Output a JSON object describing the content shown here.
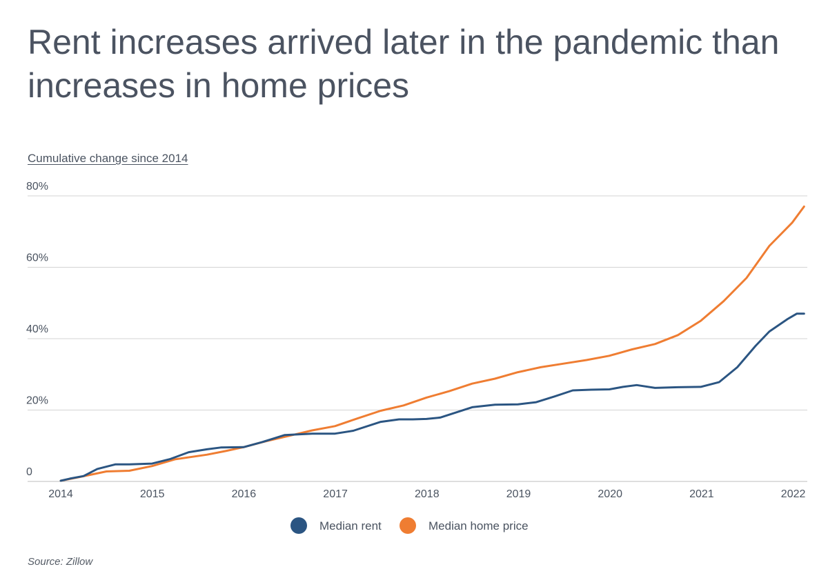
{
  "title": "Rent increases arrived later in the pandemic than increases in home prices",
  "subtitle": "Cumulative change since 2014",
  "source": "Source:  Zillow",
  "colors": {
    "rent": "#2b5582",
    "home_price": "#ef7d32",
    "grid": "#d3d3d3",
    "text": "#4a5360"
  },
  "chart_data": {
    "type": "line",
    "title": "Rent increases arrived later in the pandemic than increases in home prices",
    "ylabel": "Cumulative change since 2014",
    "xlabel": "",
    "ylim": [
      0,
      80
    ],
    "xlim": [
      2014,
      2022.15
    ],
    "yticks": [
      {
        "value": 0,
        "label": "0"
      },
      {
        "value": 20,
        "label": "20%"
      },
      {
        "value": 40,
        "label": "40%"
      },
      {
        "value": 60,
        "label": "60%"
      },
      {
        "value": 80,
        "label": "80%"
      }
    ],
    "xticks": [
      2014,
      2015,
      2016,
      2017,
      2018,
      2019,
      2020,
      2021,
      2022
    ],
    "xtick_labels": [
      "2014",
      "2015",
      "2016",
      "2017",
      "2018",
      "2019",
      "2020",
      "2021",
      "2022"
    ],
    "grid": true,
    "legend_position": "bottom-center",
    "series": [
      {
        "name": "Median rent",
        "color": "#2b5582",
        "points": [
          [
            2014.0,
            0.2
          ],
          [
            2014.1,
            0.8
          ],
          [
            2014.25,
            1.5
          ],
          [
            2014.4,
            3.5
          ],
          [
            2014.6,
            4.8
          ],
          [
            2014.75,
            4.8
          ],
          [
            2015.0,
            5.0
          ],
          [
            2015.2,
            6.3
          ],
          [
            2015.4,
            8.2
          ],
          [
            2015.6,
            9.0
          ],
          [
            2015.75,
            9.5
          ],
          [
            2016.0,
            9.6
          ],
          [
            2016.2,
            11.0
          ],
          [
            2016.45,
            13.0
          ],
          [
            2016.75,
            13.4
          ],
          [
            2017.0,
            13.4
          ],
          [
            2017.2,
            14.2
          ],
          [
            2017.5,
            16.7
          ],
          [
            2017.7,
            17.4
          ],
          [
            2017.85,
            17.4
          ],
          [
            2018.0,
            17.5
          ],
          [
            2018.15,
            17.9
          ],
          [
            2018.5,
            20.8
          ],
          [
            2018.75,
            21.5
          ],
          [
            2019.0,
            21.6
          ],
          [
            2019.2,
            22.2
          ],
          [
            2019.4,
            23.8
          ],
          [
            2019.6,
            25.5
          ],
          [
            2019.8,
            25.7
          ],
          [
            2020.0,
            25.8
          ],
          [
            2020.15,
            26.5
          ],
          [
            2020.3,
            27.0
          ],
          [
            2020.5,
            26.2
          ],
          [
            2020.75,
            26.4
          ],
          [
            2021.0,
            26.5
          ],
          [
            2021.2,
            27.8
          ],
          [
            2021.4,
            32.0
          ],
          [
            2021.6,
            38.0
          ],
          [
            2021.75,
            42.0
          ],
          [
            2021.95,
            45.5
          ],
          [
            2022.05,
            47.0
          ],
          [
            2022.13,
            47.0
          ]
        ]
      },
      {
        "name": "Median home price",
        "color": "#ef7d32",
        "points": [
          [
            2014.0,
            0.2
          ],
          [
            2014.2,
            1.2
          ],
          [
            2014.5,
            2.8
          ],
          [
            2014.75,
            3.0
          ],
          [
            2015.0,
            4.3
          ],
          [
            2015.25,
            6.2
          ],
          [
            2015.6,
            7.5
          ],
          [
            2015.8,
            8.5
          ],
          [
            2016.0,
            9.6
          ],
          [
            2016.25,
            11.3
          ],
          [
            2016.5,
            12.8
          ],
          [
            2016.75,
            14.3
          ],
          [
            2017.0,
            15.5
          ],
          [
            2017.25,
            17.7
          ],
          [
            2017.5,
            19.8
          ],
          [
            2017.75,
            21.3
          ],
          [
            2018.0,
            23.5
          ],
          [
            2018.25,
            25.3
          ],
          [
            2018.5,
            27.4
          ],
          [
            2018.75,
            28.8
          ],
          [
            2019.0,
            30.6
          ],
          [
            2019.25,
            32.0
          ],
          [
            2019.5,
            33.0
          ],
          [
            2019.75,
            34.0
          ],
          [
            2020.0,
            35.2
          ],
          [
            2020.25,
            37.0
          ],
          [
            2020.5,
            38.5
          ],
          [
            2020.75,
            41.0
          ],
          [
            2021.0,
            45.0
          ],
          [
            2021.25,
            50.5
          ],
          [
            2021.5,
            57.0
          ],
          [
            2021.75,
            66.0
          ],
          [
            2022.0,
            72.5
          ],
          [
            2022.13,
            77.0
          ]
        ]
      }
    ]
  }
}
